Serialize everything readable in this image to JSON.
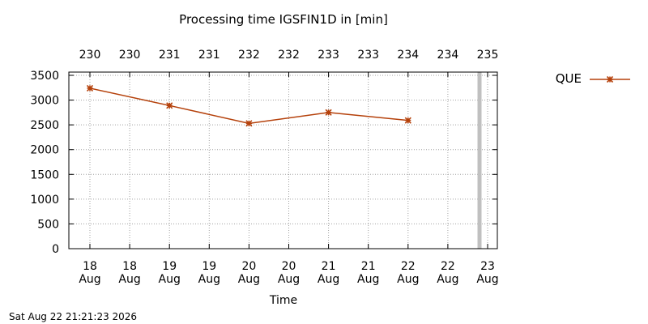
{
  "chart_data": {
    "type": "line",
    "title": "Processing time IGSFIN1D in [min]",
    "xlabel": "Time",
    "ylabel": "",
    "ylim": [
      0,
      3500
    ],
    "y_ticks": [
      0,
      500,
      1000,
      1500,
      2000,
      2500,
      3000,
      3500
    ],
    "x_ticks": [
      {
        "day": "18",
        "month": "Aug"
      },
      {
        "day": "18",
        "month": "Aug"
      },
      {
        "day": "19",
        "month": "Aug"
      },
      {
        "day": "19",
        "month": "Aug"
      },
      {
        "day": "20",
        "month": "Aug"
      },
      {
        "day": "20",
        "month": "Aug"
      },
      {
        "day": "21",
        "month": "Aug"
      },
      {
        "day": "21",
        "month": "Aug"
      },
      {
        "day": "22",
        "month": "Aug"
      },
      {
        "day": "22",
        "month": "Aug"
      },
      {
        "day": "23",
        "month": "Aug"
      }
    ],
    "top_ticks": [
      "230",
      "230",
      "231",
      "231",
      "232",
      "232",
      "233",
      "233",
      "234",
      "234",
      "235"
    ],
    "grid": true,
    "legend_position": "right",
    "series": [
      {
        "name": "QUE",
        "color": "#b5410b",
        "marker": "asterisk",
        "points": [
          {
            "tick": 0,
            "y": 3240
          },
          {
            "tick": 2,
            "y": 2890
          },
          {
            "tick": 4,
            "y": 2530
          },
          {
            "tick": 6,
            "y": 2750
          },
          {
            "tick": 8,
            "y": 2590
          }
        ]
      }
    ],
    "current_time_marker": {
      "tick": 10,
      "color": "#c0c0c0"
    }
  },
  "footer": {
    "timestamp": "Sat Aug 22 21:21:23 2026"
  }
}
